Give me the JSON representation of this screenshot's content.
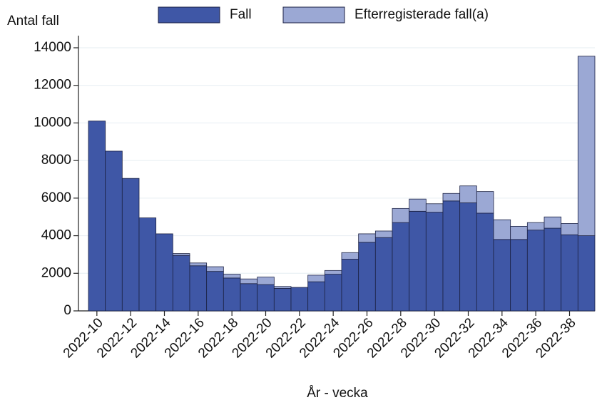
{
  "chart_data": {
    "type": "stacked_bar",
    "x_label": "År - vecka",
    "y_label": "Antal fall",
    "categories": [
      "2022-10",
      null,
      "2022-12",
      null,
      "2022-14",
      null,
      "2022-16",
      null,
      "2022-18",
      null,
      "2022-20",
      null,
      "2022-22",
      null,
      "2022-24",
      null,
      "2022-26",
      null,
      "2022-28",
      null,
      "2022-30",
      null,
      "2022-32",
      null,
      "2022-34",
      null,
      "2022-36",
      null,
      "2022-38",
      null
    ],
    "series": [
      {
        "name": "Fall",
        "color": "#3f57a6",
        "values": [
          10100,
          8500,
          7050,
          4950,
          4100,
          2950,
          2400,
          2100,
          1750,
          1450,
          1400,
          1200,
          1250,
          1550,
          1950,
          2750,
          3650,
          3900,
          4700,
          5300,
          5250,
          5850,
          5750,
          5200,
          3800,
          3800,
          4300,
          4400,
          4050,
          4000
        ]
      },
      {
        "name": "Efterregisterade fall(a)",
        "color": "#9ba8d4",
        "values": [
          0,
          0,
          0,
          0,
          0,
          100,
          150,
          250,
          200,
          250,
          400,
          100,
          0,
          350,
          200,
          350,
          450,
          350,
          750,
          650,
          450,
          400,
          900,
          1150,
          1050,
          700,
          400,
          600,
          600,
          9550
        ]
      }
    ],
    "ylim": [
      0,
      14000
    ],
    "yticks": [
      0,
      2000,
      4000,
      6000,
      8000,
      10000,
      12000,
      14000
    ],
    "grid": true,
    "legend": "top"
  }
}
